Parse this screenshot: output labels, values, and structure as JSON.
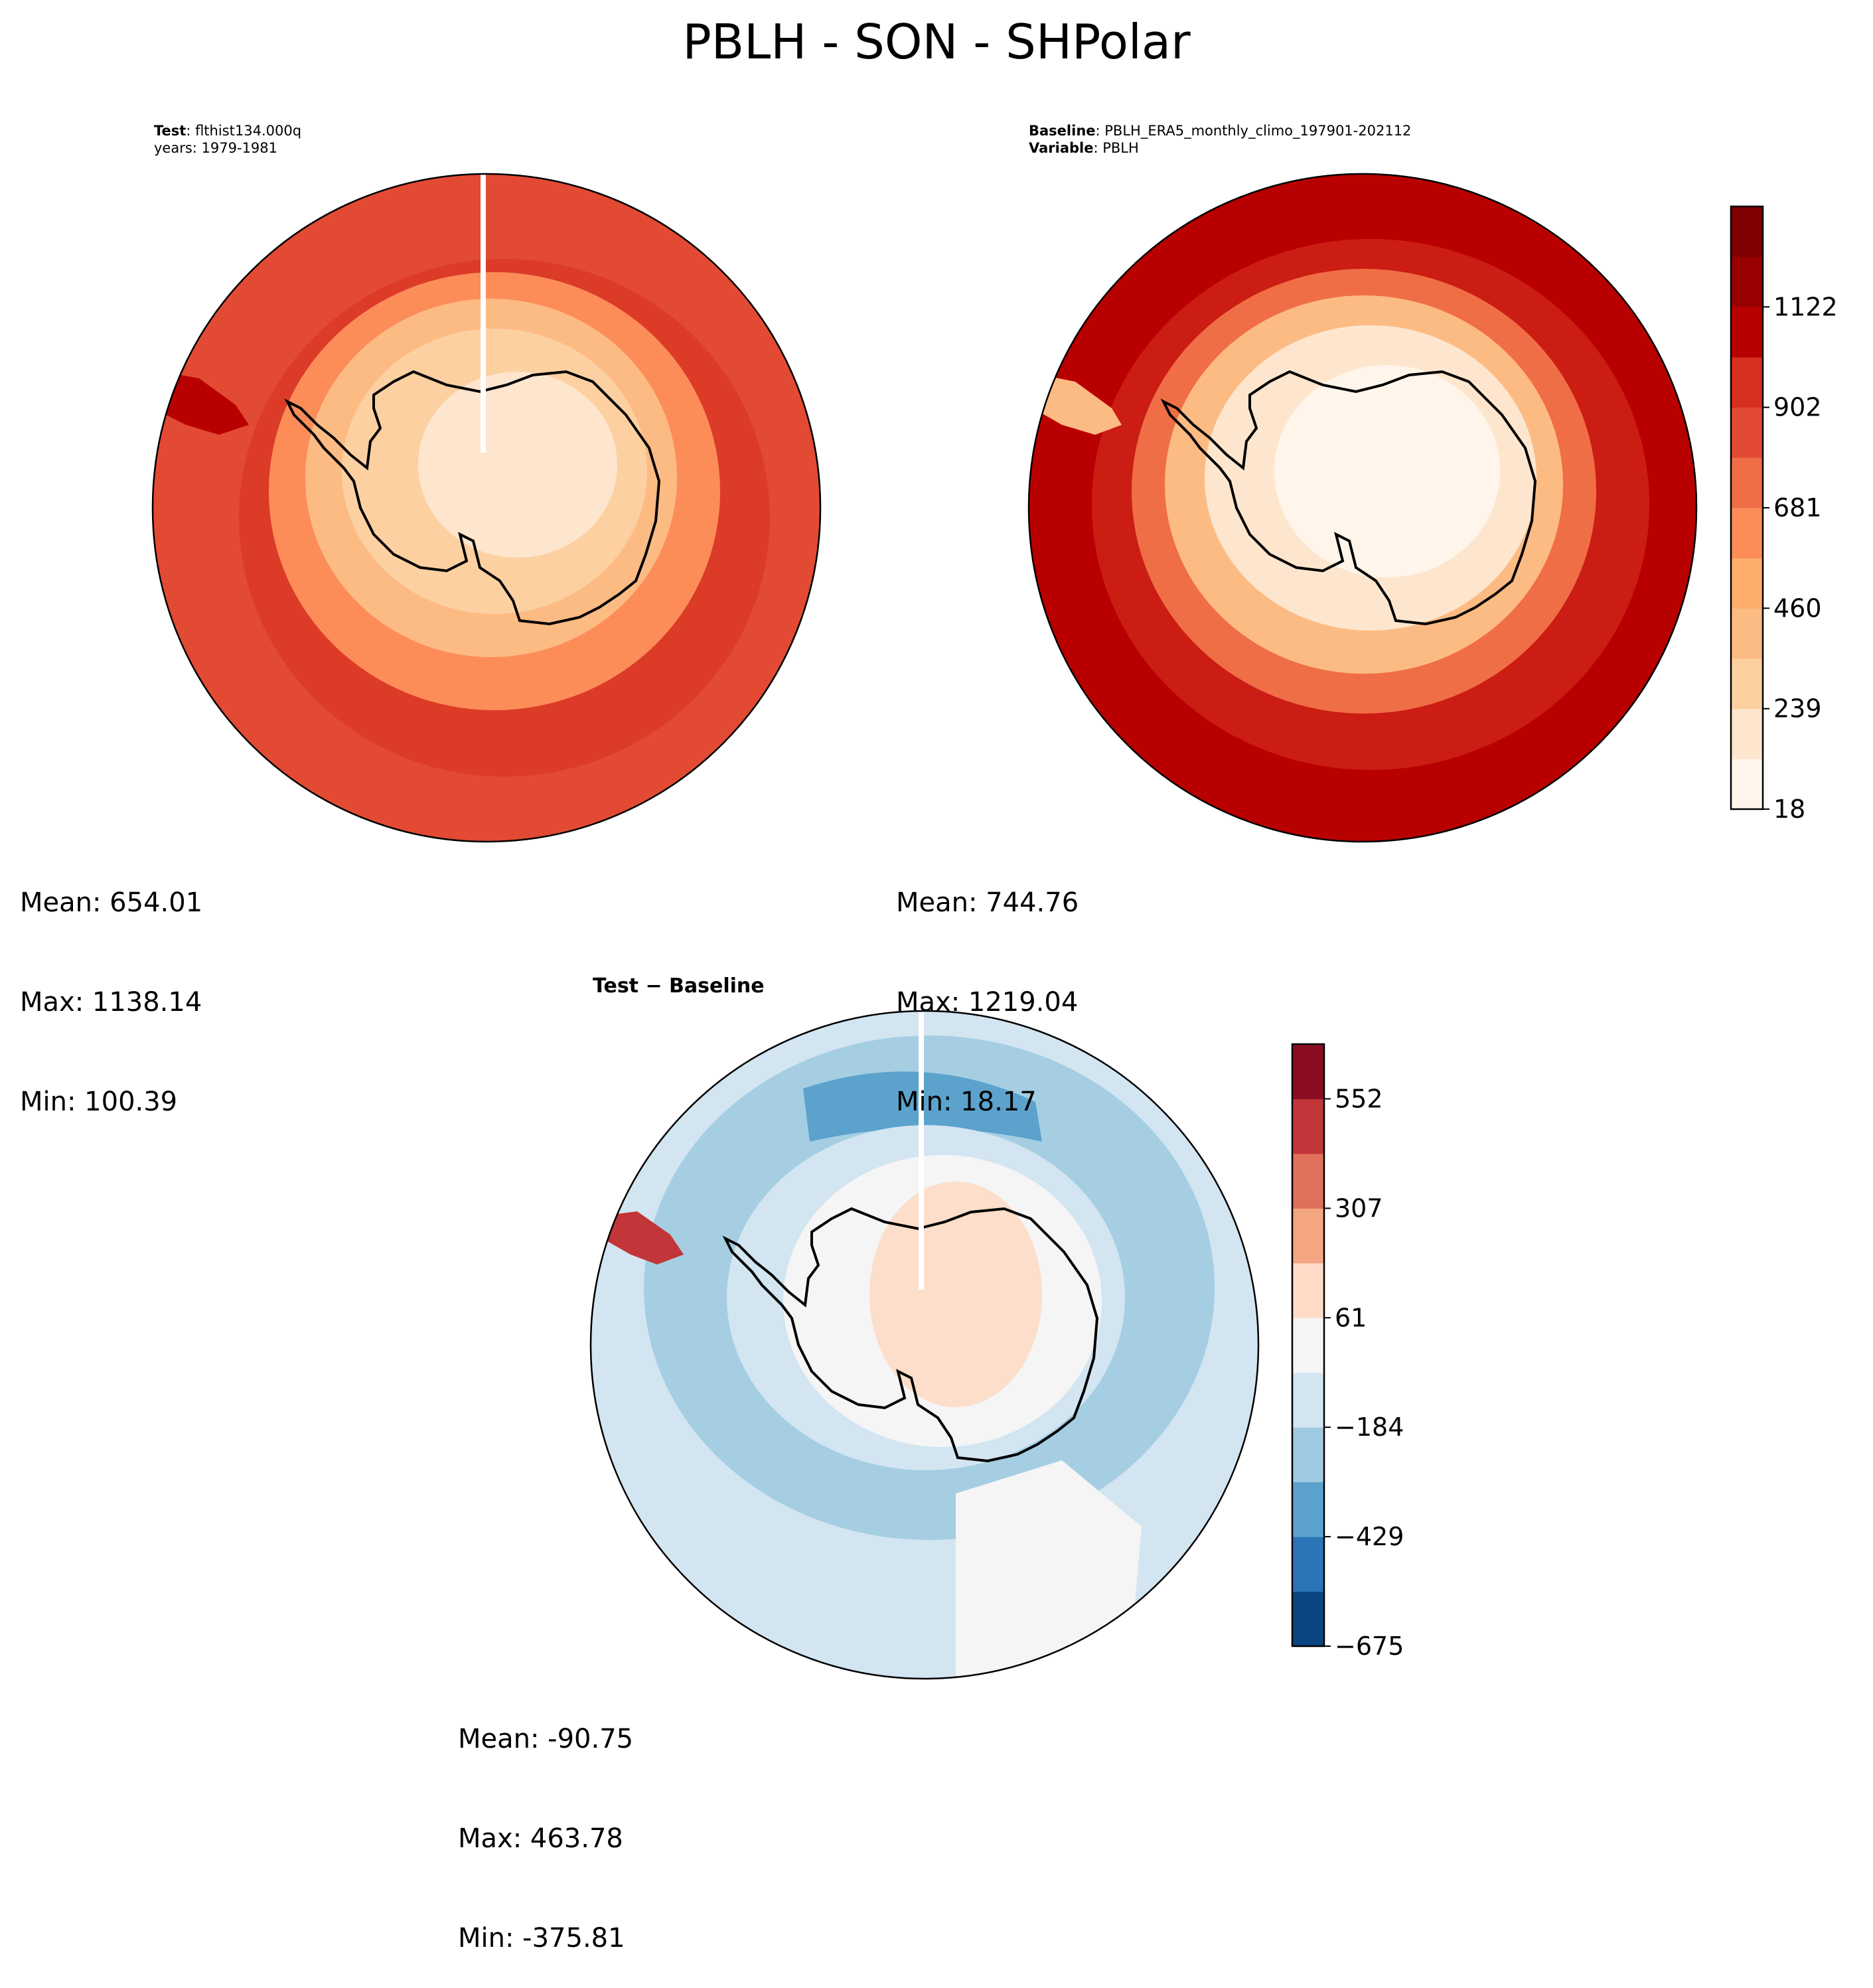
{
  "suptitle": "PBLH - SON - SHPolar",
  "panels": {
    "test": {
      "header_line1_key": "Test",
      "header_line1_value": ": flthist134.000q",
      "header_line2": "years: 1979-1981",
      "stats": {
        "mean": "Mean: 654.01",
        "max": "Max: 1138.14",
        "min": "Min: 100.39"
      }
    },
    "baseline": {
      "header_line1_key": "Baseline",
      "header_line1_value": ": PBLH_ERA5_monthly_climo_197901-202112",
      "header_line2_key": "Variable",
      "header_line2_value": ": PBLH",
      "stats": {
        "mean": "Mean: 744.76",
        "max": "Max: 1219.04",
        "min": "Min: 18.17"
      }
    },
    "diff": {
      "title": "Test − Baseline",
      "stats": {
        "mean": "Mean: -90.75",
        "max": "Max: 463.78",
        "min": "Min: -375.81"
      }
    }
  },
  "colorbars": {
    "abs": {
      "ticks": [
        "18",
        "239",
        "460",
        "681",
        "902",
        "1122"
      ],
      "levels": [
        "#fff5eb",
        "#fee6ce",
        "#fdd0a2",
        "#fdbb84",
        "#fdae6b",
        "#fc8d59",
        "#f06e45",
        "#e34a33",
        "#d7301f",
        "#b90000",
        "#990000",
        "#7f0000"
      ]
    },
    "diff": {
      "ticks": [
        "−675",
        "−429",
        "−184",
        "61",
        "307",
        "552"
      ],
      "levels": [
        "#0b4482",
        "#2b74b6",
        "#5ba2cd",
        "#9ecae1",
        "#d2e5f1",
        "#f5f5f5",
        "#fddbc7",
        "#f4a582",
        "#e0705a",
        "#c23538",
        "#8a0d24"
      ]
    }
  },
  "map_colors": {
    "test": {
      "outer": "#e34a33",
      "band_a": "#d7301f",
      "band_b": "#fc8d59",
      "band_c": "#fdbb84",
      "land": "#fdd0a2",
      "center": "#fee6ce"
    },
    "baseline": {
      "outer": "#b90000",
      "band_a": "#d7301f",
      "band_b": "#f06e45",
      "band_c": "#fdbb84",
      "land": "#fee6ce",
      "center": "#fff5eb"
    },
    "diff": {
      "outer": "#d2e5f1",
      "band_a": "#9ecae1",
      "band_b": "#5ba2cd",
      "land": "#f5f5f5",
      "warm": "#fddbc7",
      "peak": "#c23538"
    }
  }
}
